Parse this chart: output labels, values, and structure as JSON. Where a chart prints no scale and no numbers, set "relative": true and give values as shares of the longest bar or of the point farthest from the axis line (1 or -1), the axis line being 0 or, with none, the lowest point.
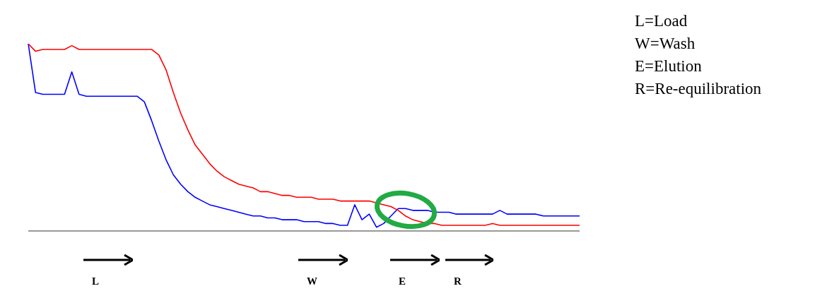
{
  "chart_data": {
    "type": "line",
    "relative": true,
    "grid": false,
    "marker": "none",
    "line_style": "solid",
    "categories": [
      null,
      null,
      null,
      null,
      null,
      null,
      null,
      null,
      null,
      null,
      null,
      null,
      null,
      null,
      null,
      null,
      null,
      null,
      null,
      null,
      null,
      null,
      null,
      null,
      null,
      null,
      null,
      null,
      null,
      null,
      null,
      null,
      null,
      null,
      null,
      null,
      null,
      null,
      null,
      null,
      null,
      null,
      null,
      null,
      null,
      null,
      null,
      null,
      null,
      null,
      null,
      null,
      null,
      null,
      null,
      null,
      null,
      null,
      null,
      null,
      null,
      null,
      null,
      null,
      null,
      null,
      null,
      null,
      null,
      null,
      null,
      null,
      null,
      null,
      null,
      null,
      null
    ],
    "series": [
      {
        "color": "#0000ff",
        "values": [
          1.0,
          0.74,
          0.73,
          0.73,
          0.73,
          0.73,
          0.85,
          0.73,
          0.72,
          0.72,
          0.72,
          0.72,
          0.72,
          0.72,
          0.72,
          0.72,
          0.69,
          0.59,
          0.48,
          0.38,
          0.3,
          0.25,
          0.21,
          0.18,
          0.16,
          0.14,
          0.13,
          0.12,
          0.11,
          0.1,
          0.09,
          0.08,
          0.08,
          0.07,
          0.07,
          0.06,
          0.06,
          0.06,
          0.05,
          0.05,
          0.05,
          0.04,
          0.04,
          0.03,
          0.03,
          0.14,
          0.06,
          0.09,
          0.02,
          0.04,
          0.08,
          0.12,
          0.12,
          0.11,
          0.11,
          0.11,
          0.1,
          0.1,
          0.1,
          0.09,
          0.09,
          0.09,
          0.09,
          0.09,
          0.09,
          0.11,
          0.09,
          0.09,
          0.09,
          0.09,
          0.09,
          0.08,
          0.08,
          0.08,
          0.08,
          0.08,
          0.08
        ]
      },
      {
        "color": "#ff0000",
        "values": [
          1.0,
          0.96,
          0.97,
          0.97,
          0.97,
          0.97,
          0.99,
          0.97,
          0.97,
          0.97,
          0.97,
          0.97,
          0.97,
          0.97,
          0.97,
          0.97,
          0.97,
          0.97,
          0.94,
          0.86,
          0.74,
          0.63,
          0.54,
          0.46,
          0.41,
          0.36,
          0.32,
          0.29,
          0.27,
          0.25,
          0.24,
          0.23,
          0.21,
          0.21,
          0.2,
          0.19,
          0.19,
          0.18,
          0.18,
          0.18,
          0.17,
          0.17,
          0.17,
          0.16,
          0.16,
          0.16,
          0.16,
          0.16,
          0.15,
          0.14,
          0.13,
          0.11,
          0.08,
          0.06,
          0.05,
          0.04,
          0.04,
          0.03,
          0.03,
          0.03,
          0.03,
          0.03,
          0.03,
          0.03,
          0.04,
          0.03,
          0.03,
          0.03,
          0.03,
          0.03,
          0.03,
          0.03,
          0.03,
          0.03,
          0.03,
          0.03,
          0.03
        ]
      }
    ],
    "annotations": [
      "L=Load",
      "W=Wash",
      "E=Elution",
      "R=Re-equilibration",
      "L",
      "W",
      "E",
      "R"
    ]
  }
}
